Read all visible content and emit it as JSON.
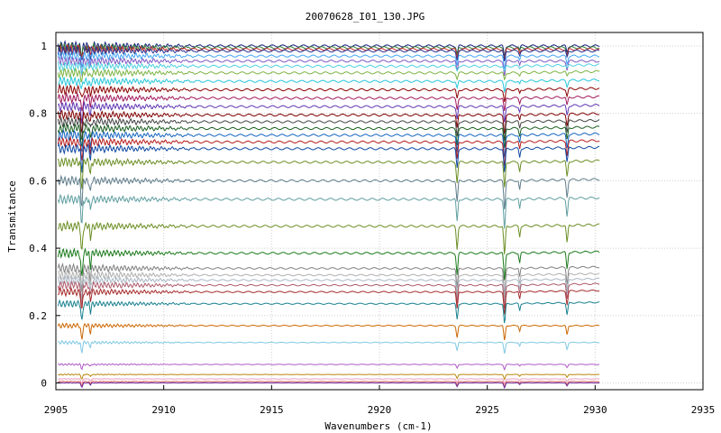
{
  "chart_data": {
    "type": "line",
    "title": "20070628_I01_130.JPG",
    "xlabel": "Wavenumbers (cm-1)",
    "ylabel": "Transmitance",
    "xlim": [
      2905,
      2935
    ],
    "ylim": [
      -0.02,
      1.04
    ],
    "x_ticks": [
      2905,
      2910,
      2915,
      2920,
      2925,
      2930,
      2935
    ],
    "y_ticks": [
      0,
      0.2,
      0.4,
      0.6,
      0.8,
      1
    ],
    "grid": true,
    "legend": "none",
    "x_range_data": [
      2905.1,
      2930.2
    ],
    "absorption_lines_cm1": [
      2906.2,
      2906.6,
      2923.6,
      2925.8,
      2926.5,
      2928.7
    ],
    "series": [
      {
        "baseline": 1.0,
        "color": "#1a237e"
      },
      {
        "baseline": 0.995,
        "color": "#2e7d32"
      },
      {
        "baseline": 0.99,
        "color": "#c62828"
      },
      {
        "baseline": 0.985,
        "color": "#283593"
      },
      {
        "baseline": 0.97,
        "color": "#42a5f5"
      },
      {
        "baseline": 0.955,
        "color": "#7e57c2"
      },
      {
        "baseline": 0.94,
        "color": "#4dd0e1"
      },
      {
        "baseline": 0.92,
        "color": "#7cb342"
      },
      {
        "baseline": 0.895,
        "color": "#26c6da"
      },
      {
        "baseline": 0.87,
        "color": "#8b0000"
      },
      {
        "baseline": 0.845,
        "color": "#a0175a"
      },
      {
        "baseline": 0.82,
        "color": "#5e35b1"
      },
      {
        "baseline": 0.795,
        "color": "#800000"
      },
      {
        "baseline": 0.775,
        "color": "#444444"
      },
      {
        "baseline": 0.755,
        "color": "#1b5e20"
      },
      {
        "baseline": 0.735,
        "color": "#1565c0"
      },
      {
        "baseline": 0.715,
        "color": "#b71c1c"
      },
      {
        "baseline": 0.695,
        "color": "#0d47a1"
      },
      {
        "baseline": 0.655,
        "color": "#6b8e23"
      },
      {
        "baseline": 0.6,
        "color": "#607d8b"
      },
      {
        "baseline": 0.545,
        "color": "#5f9ea0"
      },
      {
        "baseline": 0.465,
        "color": "#6b8e23"
      },
      {
        "baseline": 0.385,
        "color": "#1b7a1b"
      },
      {
        "baseline": 0.34,
        "color": "#808080"
      },
      {
        "baseline": 0.32,
        "color": "#b0b0b0"
      },
      {
        "baseline": 0.305,
        "color": "#aab7c4"
      },
      {
        "baseline": 0.29,
        "color": "#ad5a6a"
      },
      {
        "baseline": 0.27,
        "color": "#a52a2a"
      },
      {
        "baseline": 0.235,
        "color": "#17808f"
      },
      {
        "baseline": 0.17,
        "color": "#cc6600"
      },
      {
        "baseline": 0.12,
        "color": "#7ec8e3"
      },
      {
        "baseline": 0.055,
        "color": "#b05ac8"
      },
      {
        "baseline": 0.025,
        "color": "#b8860b"
      },
      {
        "baseline": 0.012,
        "color": "#e8a0c0"
      },
      {
        "baseline": 0.004,
        "color": "#d05050"
      },
      {
        "baseline": 0.0,
        "color": "#7030a0"
      }
    ]
  }
}
